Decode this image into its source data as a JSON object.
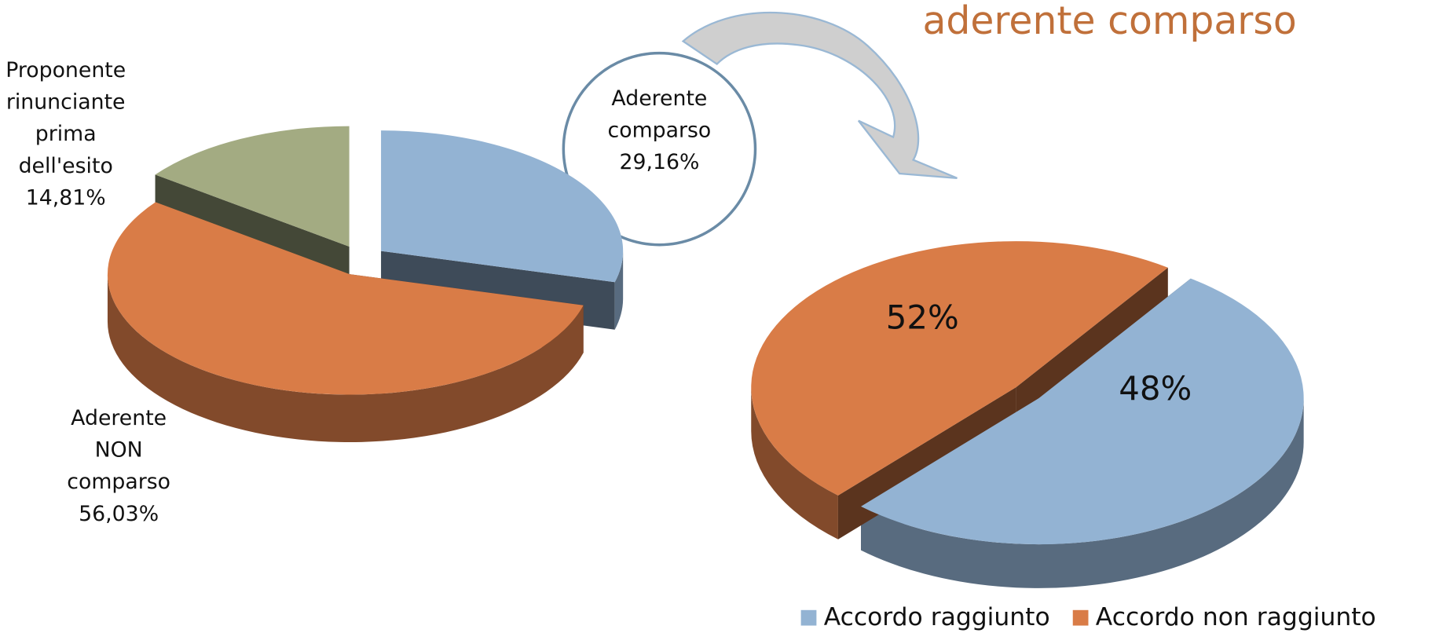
{
  "chart_data": [
    {
      "type": "pie",
      "title": "aderente comparso",
      "categories": [
        "Aderente comparso",
        "Aderente NON comparso",
        "Proponente rinunciante prima dell'esito"
      ],
      "values": [
        29.16,
        56.03,
        14.81
      ],
      "value_labels": [
        "29,16%",
        "56,03%",
        "14,81%"
      ],
      "colors": [
        "#93b3d3",
        "#d97c47",
        "#a3ab82"
      ]
    },
    {
      "type": "pie",
      "categories": [
        "Accordo raggiunto",
        "Accordo non raggiunto"
      ],
      "values": [
        52,
        48
      ],
      "value_labels": [
        "52%",
        "48%"
      ],
      "colors": [
        "#93b3d3",
        "#d97c47"
      ],
      "legend": "bottom"
    }
  ]
}
